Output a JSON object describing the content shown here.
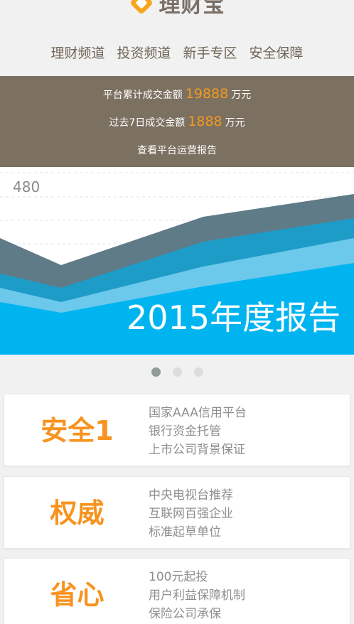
{
  "header": {
    "logo_text": "理财宝",
    "logo_icon": "diamond-logo-icon",
    "colors": {
      "brand": "#f7a51e",
      "text": "#7b7067"
    }
  },
  "nav": {
    "items": [
      {
        "label": "理财频道"
      },
      {
        "label": "投资频道"
      },
      {
        "label": "新手专区"
      },
      {
        "label": "安全保障"
      }
    ]
  },
  "stats": {
    "cumulative_prefix": "平台累计成交金额",
    "cumulative_value": "19888",
    "cumulative_unit": "万元",
    "week_prefix": "过去7日成交金额",
    "week_value": "1888",
    "week_unit": "万元",
    "report_link": "查看平台运营报告",
    "colors": {
      "background": "#7c7061",
      "accent": "#f39a1d"
    }
  },
  "banner": {
    "axis_label": "480",
    "title": "2015年度报告",
    "colors": {
      "sky": "#00b4f0",
      "dark_band": "#5f7b87",
      "mid_band": "#1e9cc8",
      "light_band": "#6cc9ec"
    }
  },
  "carousel": {
    "slides": 3,
    "active_index": 0
  },
  "features": [
    {
      "title": "安全1",
      "lines": [
        "国家AAA信用平台",
        "银行资金托管",
        "上市公司背景保证"
      ]
    },
    {
      "title": "权威",
      "lines": [
        "中央电视台推荐",
        "互联网百强企业",
        "标准起草单位"
      ]
    },
    {
      "title": "省心",
      "lines": [
        "100元起投",
        "用户利益保障机制",
        "保险公司承保"
      ]
    }
  ]
}
